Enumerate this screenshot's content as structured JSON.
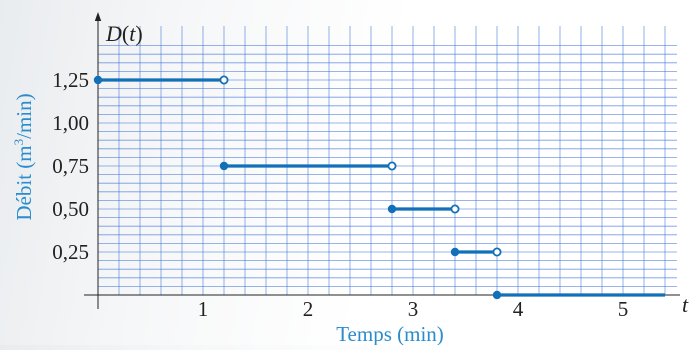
{
  "chart_data": {
    "type": "line",
    "title": "",
    "function_label": "D(t)",
    "xlabel": "Temps (min)",
    "ylabel": "Débit (m3/min)",
    "xaxis_end_label": "t",
    "xlim": [
      0,
      5.4
    ],
    "ylim": [
      0,
      1.45
    ],
    "x_ticks": [
      1,
      2,
      3,
      4,
      5
    ],
    "x_tick_labels": [
      "1",
      "2",
      "3",
      "4",
      "5"
    ],
    "y_ticks": [
      0.25,
      0.5,
      0.75,
      1.0,
      1.25
    ],
    "y_tick_labels": [
      "0,25",
      "0,50",
      "0,75",
      "1,00",
      "1,25"
    ],
    "grid": true,
    "minor_grid_step_x": 0.2,
    "minor_grid_step_y": 0.05,
    "line_color": "#1170b8",
    "label_color": "#2a8ccc",
    "grid_color": "#3f73d8",
    "series": [
      {
        "segments": [
          {
            "x_start": 0,
            "x_end": 1.2,
            "y": 1.25,
            "start_closed": true,
            "end_closed": false
          },
          {
            "x_start": 1.2,
            "x_end": 2.8,
            "y": 0.75,
            "start_closed": true,
            "end_closed": false
          },
          {
            "x_start": 2.8,
            "x_end": 3.4,
            "y": 0.5,
            "start_closed": true,
            "end_closed": false
          },
          {
            "x_start": 3.4,
            "x_end": 3.8,
            "y": 0.25,
            "start_closed": true,
            "end_closed": false
          },
          {
            "x_start": 3.8,
            "x_end": 5.4,
            "y": 0,
            "start_closed": true,
            "end_closed": null
          }
        ]
      }
    ]
  }
}
